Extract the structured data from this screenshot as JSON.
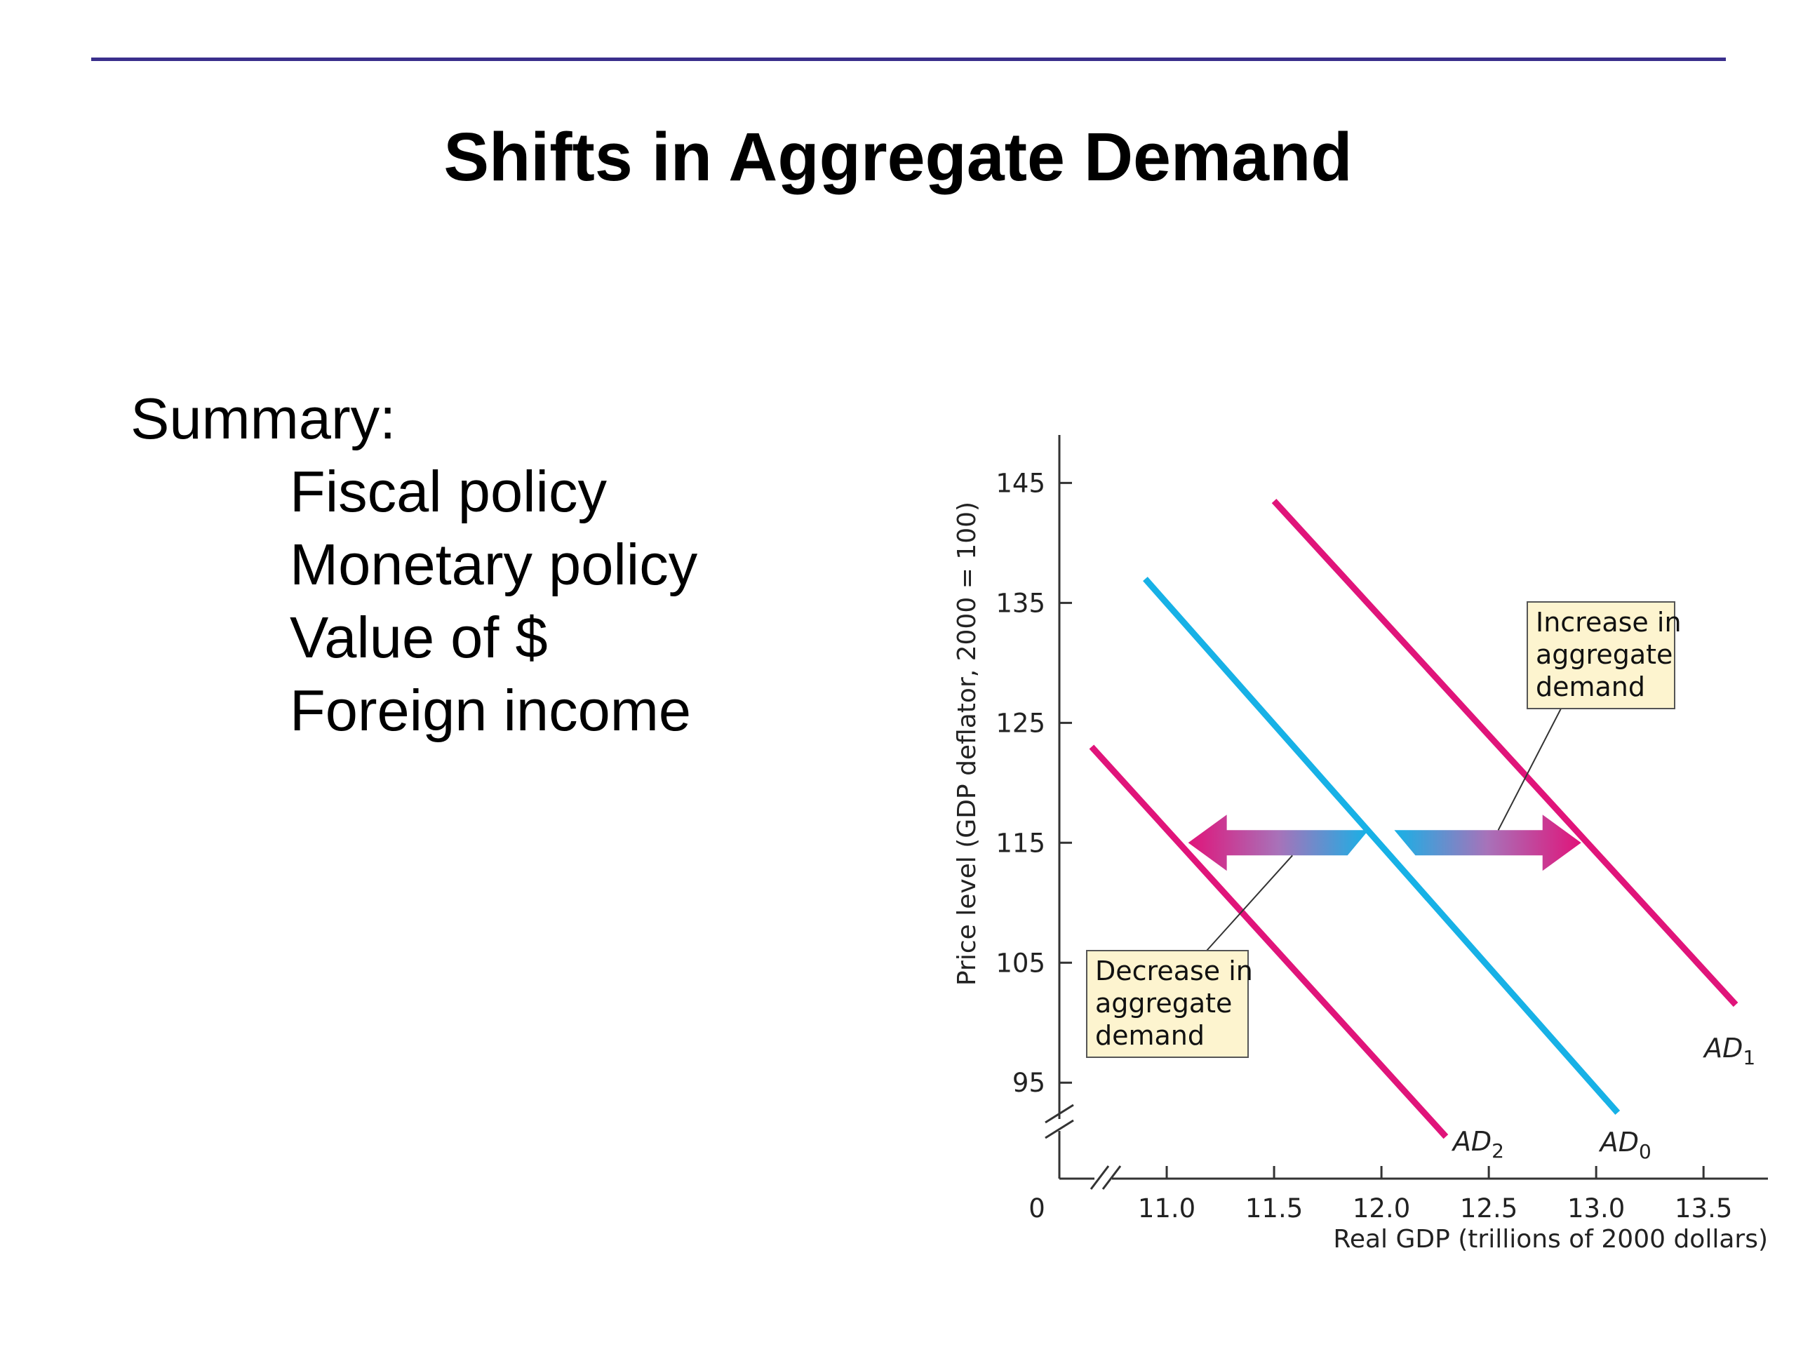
{
  "slide": {
    "title": "Shifts in Aggregate Demand",
    "summary_heading": "Summary:",
    "summary_items": [
      "Fiscal policy",
      "Monetary policy",
      "Value of $",
      "Foreign income"
    ]
  },
  "chart_data": {
    "type": "line",
    "xlabel": "Real GDP (trillions of 2000 dollars)",
    "ylabel": "Price level (GDP deflator, 2000 = 100)",
    "x_ticks": [
      11.0,
      11.5,
      12.0,
      12.5,
      13.0,
      13.5
    ],
    "x_tick_labels": [
      "11.0",
      "11.5",
      "12.0",
      "12.5",
      "13.0",
      "13.5"
    ],
    "y_ticks": [
      95,
      105,
      115,
      125,
      135,
      145
    ],
    "y_tick_labels": [
      "95",
      "105",
      "115",
      "125",
      "135",
      "145"
    ],
    "origin_label": "0",
    "axis_breaks": true,
    "xlim": [
      10.5,
      13.8
    ],
    "ylim": [
      87,
      149
    ],
    "grid": false,
    "series": [
      {
        "label_base": "AD",
        "label_sub": "1",
        "color": "#e0147a",
        "x": [
          11.5,
          13.65
        ],
        "y": [
          143.5,
          101.5
        ]
      },
      {
        "label_base": "AD",
        "label_sub": "0",
        "color": "#17b1e6",
        "x": [
          10.9,
          13.1
        ],
        "y": [
          137,
          92.5
        ]
      },
      {
        "label_base": "AD",
        "label_sub": "2",
        "color": "#e0147a",
        "x": [
          10.65,
          12.3
        ],
        "y": [
          123,
          90.5
        ]
      }
    ],
    "annotations": [
      {
        "text": [
          "Increase in",
          "aggregate",
          "demand"
        ],
        "direction": "right",
        "x_from": 12.06,
        "x_to": 12.93,
        "y": 115
      },
      {
        "text": [
          "Decrease in",
          "aggregate",
          "demand"
        ],
        "direction": "left",
        "x_from": 11.94,
        "x_to": 11.1,
        "y": 115
      }
    ],
    "colors": {
      "axis": "#333333",
      "callout_fill": "#fdf4cf",
      "callout_border": "#555555",
      "arrow_pink": "#e0147a",
      "arrow_blue": "#17b1e6"
    }
  }
}
